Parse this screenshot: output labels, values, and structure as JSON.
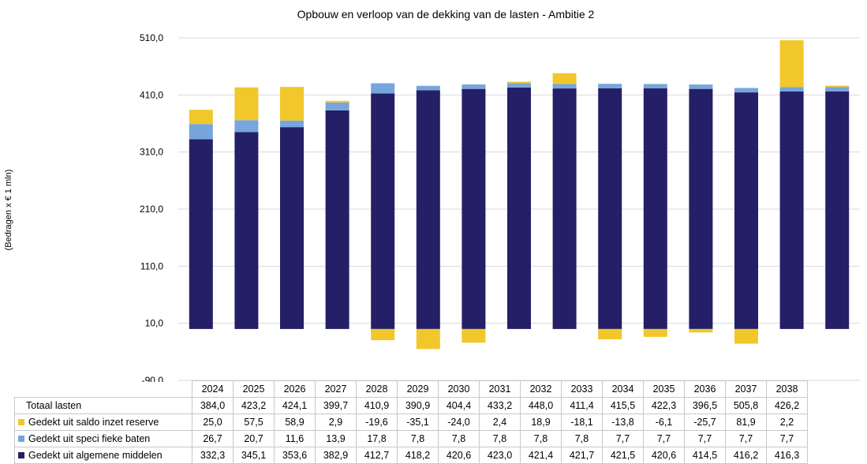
{
  "chart_data": {
    "type": "bar",
    "stacked": true,
    "title": "Opbouw  en  verloop  van  de  dekking  van  de  lasten  -  Ambitie  2",
    "ylabel": "(Bedragen x € 1 mln)",
    "ylim": [
      -90,
      510
    ],
    "yticks": [
      "-90,0",
      "10,0",
      "110,0",
      "210,0",
      "310,0",
      "410,0",
      "510,0"
    ],
    "ytick_values": [
      -90,
      10,
      110,
      210,
      310,
      410,
      510
    ],
    "categories": [
      "2024",
      "2025",
      "2026",
      "2027",
      "2028",
      "2029",
      "2030",
      "2031",
      "2032",
      "2033",
      "2034",
      "2035",
      "2036",
      "2037",
      "2038"
    ],
    "totals_label": "Totaal lasten",
    "totals": [
      "384,0",
      "423,2",
      "424,1",
      "399,7",
      "410,9",
      "390,9",
      "404,4",
      "433,2",
      "448,0",
      "411,4",
      "415,5",
      "422,3",
      "396,5",
      "505,8",
      "426,2"
    ],
    "series": [
      {
        "name": "Gedekt uit algemene middelen",
        "color": "#241f66",
        "values": [
          332.3,
          345.1,
          353.6,
          382.9,
          412.7,
          418.2,
          420.6,
          423.0,
          421.4,
          421.7,
          421.5,
          420.6,
          414.5,
          416.2,
          416.3
        ],
        "labels": [
          "332,3",
          "345,1",
          "353,6",
          "382,9",
          "412,7",
          "418,2",
          "420,6",
          "423,0",
          "421,4",
          "421,7",
          "421,5",
          "420,6",
          "414,5",
          "416,2",
          "416,3"
        ]
      },
      {
        "name": "Gedekt uit specifieke baten",
        "color": "#77a5dd",
        "values": [
          26.7,
          20.7,
          11.6,
          13.9,
          17.8,
          7.8,
          7.8,
          7.8,
          7.8,
          7.8,
          7.7,
          7.7,
          7.7,
          7.7,
          7.7
        ],
        "labels": [
          "26,7",
          "20,7",
          "11,6",
          "13,9",
          "17,8",
          "7,8",
          "7,8",
          "7,8",
          "7,8",
          "7,8",
          "7,7",
          "7,7",
          "7,7",
          "7,7",
          "7,7"
        ]
      },
      {
        "name": "Gedekt uit saldo inzet reserve",
        "color": "#f1c72b",
        "values": [
          25.0,
          57.5,
          58.9,
          2.9,
          -19.6,
          -35.1,
          -24.0,
          2.4,
          18.9,
          -18.1,
          -13.8,
          -6.1,
          -25.7,
          81.9,
          2.2
        ],
        "labels": [
          "25,0",
          "57,5",
          "58,9",
          "2,9",
          "-19,6",
          "-35,1",
          "-24,0",
          "2,4",
          "18,9",
          "-18,1",
          "-13,8",
          "-6,1",
          "-25,7",
          "81,9",
          "2,2"
        ]
      }
    ],
    "table_rows": [
      {
        "label": "Totaal lasten",
        "key_color": ""
      },
      {
        "label": "Gedekt uit saldo inzet reserve",
        "key_color": "#f1c72b"
      },
      {
        "label": "Gedekt uit specifieke baten",
        "key_color": "#77a5dd"
      },
      {
        "label": "Gedekt uit algemene middelen",
        "key_color": "#241f66"
      }
    ],
    "table_row_labels_display": [
      "Totaal lasten",
      "Gedekt uit saldo inzet reserve",
      "Gedekt uit speci fieke baten",
      "Gedekt uit algemene middelen"
    ],
    "grid": true,
    "legend": "data table below chart"
  }
}
